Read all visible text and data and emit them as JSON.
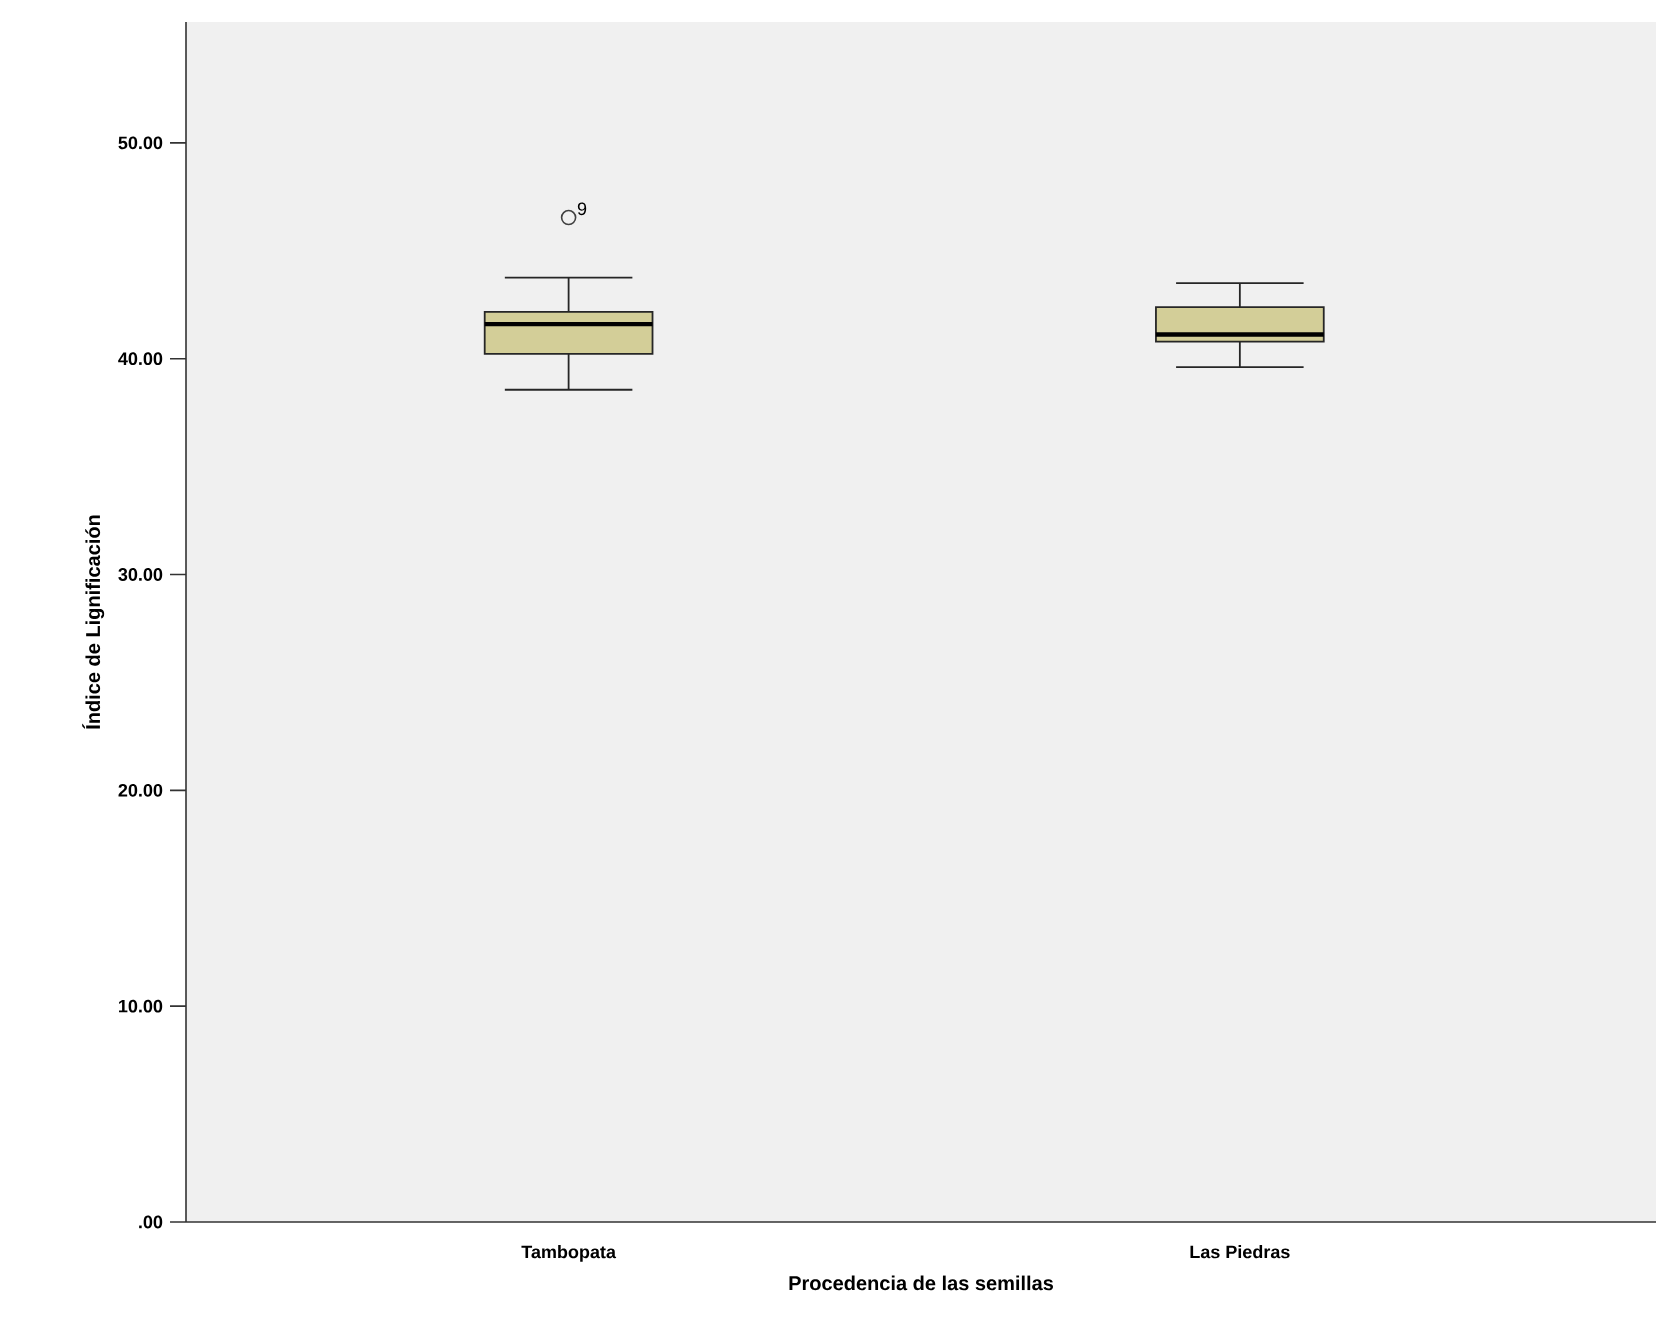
{
  "chart_data": {
    "type": "box",
    "xlabel": "Procedencia de las semillas",
    "ylabel": "Índice de Lignificación",
    "categories": [
      "Tambopata",
      "Las Piedras"
    ],
    "boxes": [
      {
        "low": 38.56,
        "q1": 40.22,
        "median": 41.6,
        "q3": 42.17,
        "high": 43.76,
        "outliers": [
          46.54
        ]
      },
      {
        "low": 39.61,
        "q1": 40.79,
        "median": 41.12,
        "q3": 42.39,
        "high": 43.5
      }
    ],
    "color": "#d3ce98",
    "ylim": [
      0,
      55.6
    ],
    "yticks": [
      {
        "value": 0,
        "label": ".00"
      },
      {
        "value": 10,
        "label": "10.00"
      },
      {
        "value": 20,
        "label": "20.00"
      },
      {
        "value": 30,
        "label": "30.00"
      },
      {
        "value": 40,
        "label": "40.00"
      },
      {
        "value": 50,
        "label": "50.00"
      }
    ],
    "annotations": [
      "9"
    ]
  }
}
